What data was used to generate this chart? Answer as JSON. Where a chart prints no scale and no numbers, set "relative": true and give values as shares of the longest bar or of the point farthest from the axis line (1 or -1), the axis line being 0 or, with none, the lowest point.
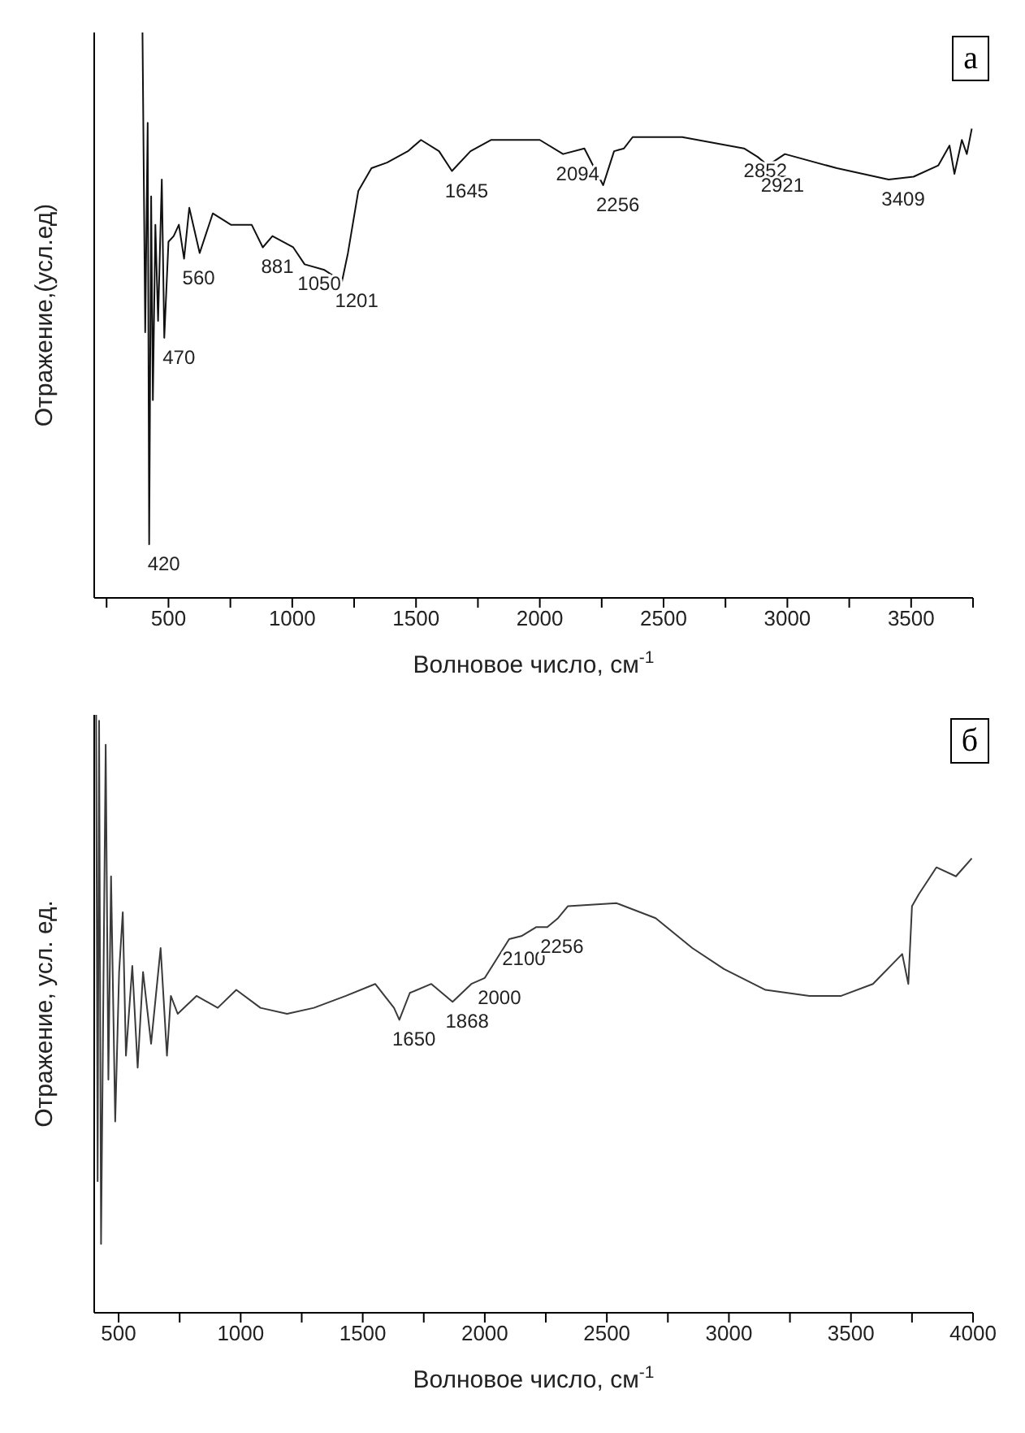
{
  "chart_data": [
    {
      "type": "line",
      "relative": true,
      "xlabel": "Волновое число, см$^{-1}$",
      "ylabel": "Отражение,(усл.ед)",
      "xlim": [
        200,
        3750
      ],
      "xticks": [
        {
          "value": 250,
          "label": null
        },
        500,
        {
          "value": 750,
          "label": null
        },
        1000,
        {
          "value": 1250,
          "label": null
        },
        1500,
        {
          "value": 1750,
          "label": null
        },
        2000,
        {
          "value": 2250,
          "label": null
        },
        2500,
        {
          "value": 2750,
          "label": null
        },
        3000,
        {
          "value": 3250,
          "label": null
        },
        3500,
        {
          "value": 3750,
          "label": null
        }
      ],
      "series": [
        {
          "color": "#111111",
          "x": [
            395,
            406,
            416,
            422,
            430,
            437,
            447,
            458,
            473,
            483,
            500,
            521,
            542,
            563,
            584,
            626,
            679,
            752,
            836,
            881,
            920,
            1004,
            1050,
            1130,
            1201,
            1225,
            1267,
            1320,
            1383,
            1467,
            1520,
            1593,
            1645,
            1720,
            1804,
            1900,
            2000,
            2094,
            2180,
            2256,
            2300,
            2340,
            2375,
            2575,
            2825,
            2880,
            2921,
            2990,
            3200,
            3409,
            3510,
            3610,
            3655,
            3675,
            3705,
            3725,
            3745
          ],
          "values": [
            1.0,
            0.47,
            0.84,
            0.095,
            0.71,
            0.35,
            0.66,
            0.49,
            0.74,
            0.46,
            0.63,
            0.64,
            0.66,
            0.6,
            0.69,
            0.61,
            0.68,
            0.66,
            0.66,
            0.62,
            0.64,
            0.62,
            0.59,
            0.58,
            0.56,
            0.61,
            0.72,
            0.76,
            0.77,
            0.79,
            0.81,
            0.79,
            0.755,
            0.79,
            0.81,
            0.81,
            0.81,
            0.785,
            0.795,
            0.73,
            0.79,
            0.795,
            0.815,
            0.815,
            0.795,
            0.78,
            0.765,
            0.785,
            0.76,
            0.74,
            0.745,
            0.765,
            0.8,
            0.75,
            0.81,
            0.785,
            0.83
          ]
        }
      ],
      "annotations": [
        "а",
        {
          "text": "420",
          "x": 422,
          "y": 0.095
        },
        {
          "text": "470",
          "x": 483,
          "y": 0.46
        },
        {
          "text": "560",
          "x": 563,
          "y": 0.6
        },
        {
          "text": "881",
          "x": 881,
          "y": 0.62
        },
        {
          "text": "1050",
          "x": 1050,
          "y": 0.59
        },
        {
          "text": "1201",
          "x": 1201,
          "y": 0.56
        },
        {
          "text": "1645",
          "x": 1645,
          "y": 0.755
        },
        {
          "text": "2094",
          "x": 2094,
          "y": 0.785
        },
        {
          "text": "2256",
          "x": 2256,
          "y": 0.73
        },
        {
          "text": "2852",
          "x": 2852,
          "y": 0.79
        },
        {
          "text": "2921",
          "x": 2921,
          "y": 0.765
        },
        {
          "text": "3409",
          "x": 3409,
          "y": 0.74
        }
      ]
    },
    {
      "type": "line",
      "relative": true,
      "xlabel": "Волновое число, см$^{-1}$",
      "ylabel": "Отражение, усл. ед.",
      "xlim": [
        400,
        4000
      ],
      "xticks": [
        500,
        {
          "value": 750,
          "label": null
        },
        1000,
        {
          "value": 1250,
          "label": null
        },
        1500,
        {
          "value": 1750,
          "label": null
        },
        2000,
        {
          "value": 2250,
          "label": null
        },
        2500,
        {
          "value": 2750,
          "label": null
        },
        3000,
        {
          "value": 3250,
          "label": null
        },
        3500,
        {
          "value": 3750,
          "label": null
        },
        4000
      ],
      "series": [
        {
          "color": "#3a3a3a",
          "x": [
            408,
            414,
            420,
            428,
            447,
            458,
            469,
            486,
            502,
            517,
            530,
            556,
            578,
            600,
            633,
            672,
            698,
            714,
            742,
            819,
            906,
            982,
            1081,
            1190,
            1300,
            1431,
            1551,
            1628,
            1650,
            1693,
            1781,
            1868,
            1945,
            2000,
            2100,
            2150,
            2210,
            2256,
            2300,
            2340,
            2540,
            2700,
            2850,
            2980,
            3150,
            3330,
            3460,
            3590,
            3710,
            3735,
            3750,
            3778,
            3850,
            3930,
            3995
          ],
          "values": [
            1.0,
            0.22,
            0.99,
            0.115,
            0.95,
            0.39,
            0.73,
            0.32,
            0.57,
            0.67,
            0.43,
            0.58,
            0.41,
            0.57,
            0.45,
            0.61,
            0.43,
            0.53,
            0.5,
            0.53,
            0.51,
            0.54,
            0.51,
            0.5,
            0.51,
            0.53,
            0.55,
            0.51,
            0.49,
            0.535,
            0.55,
            0.52,
            0.55,
            0.56,
            0.625,
            0.63,
            0.645,
            0.645,
            0.66,
            0.68,
            0.685,
            0.66,
            0.61,
            0.575,
            0.54,
            0.53,
            0.53,
            0.55,
            0.6,
            0.55,
            0.68,
            0.7,
            0.745,
            0.73,
            0.76
          ]
        }
      ],
      "annotations": [
        "б",
        {
          "text": "1650",
          "x": 1650,
          "y": 0.49
        },
        {
          "text": "1868",
          "x": 1868,
          "y": 0.52
        },
        {
          "text": "2000",
          "x": 2000,
          "y": 0.56
        },
        {
          "text": "2100",
          "x": 2100,
          "y": 0.625
        },
        {
          "text": "2256",
          "x": 2256,
          "y": 0.645
        }
      ]
    }
  ]
}
